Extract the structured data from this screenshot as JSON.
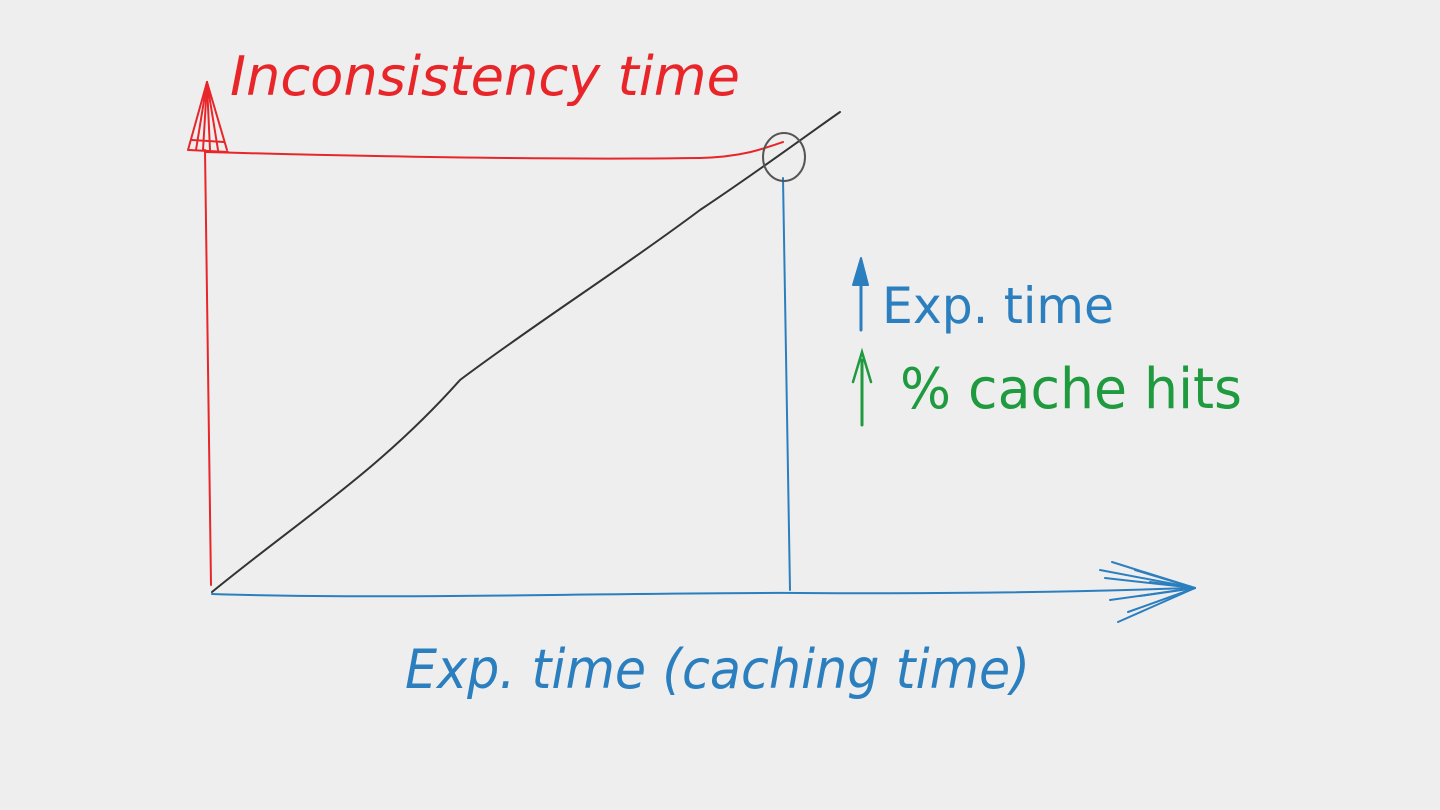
{
  "colors": {
    "background": "#eeeeee",
    "red": "#e8262a",
    "blue": "#2b7fbf",
    "green": "#1f9a3f",
    "black": "#333333"
  },
  "labels": {
    "y_axis": "Inconsistency time",
    "x_axis": "Exp. time (caching time)",
    "note_1": "Exp. time",
    "note_2": "% cache hits"
  },
  "icons": {
    "note_1_arrow": "up-arrow-icon",
    "note_2_arrow": "up-arrow-icon"
  }
}
